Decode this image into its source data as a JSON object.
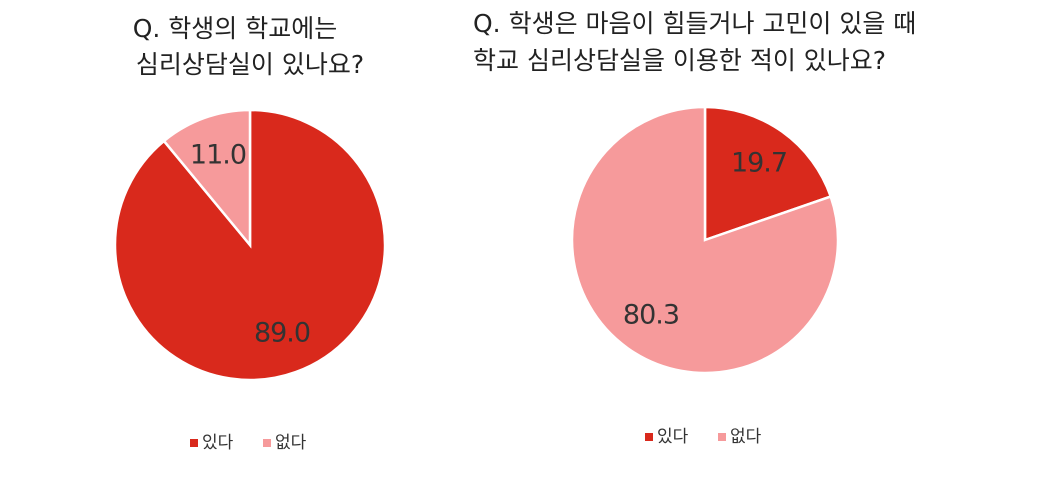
{
  "chart_data": [
    {
      "type": "pie",
      "title": [
        "Q. 학생의 학교에는",
        "심리상담실이 있나요?"
      ],
      "categories": [
        "있다",
        "없다"
      ],
      "values": [
        89.0,
        11.0
      ],
      "value_labels": [
        "89.0",
        "11.0"
      ],
      "colors": [
        "#d9291c",
        "#f69a9b"
      ]
    },
    {
      "type": "pie",
      "title": [
        "Q. 학생은 마음이 힘들거나 고민이 있을 때",
        "학교 심리상담실을 이용한 적이 있나요?"
      ],
      "categories": [
        "있다",
        "없다"
      ],
      "values": [
        19.7,
        80.3
      ],
      "colors": [
        "#d9291c",
        "#f69a9b"
      ]
    }
  ]
}
